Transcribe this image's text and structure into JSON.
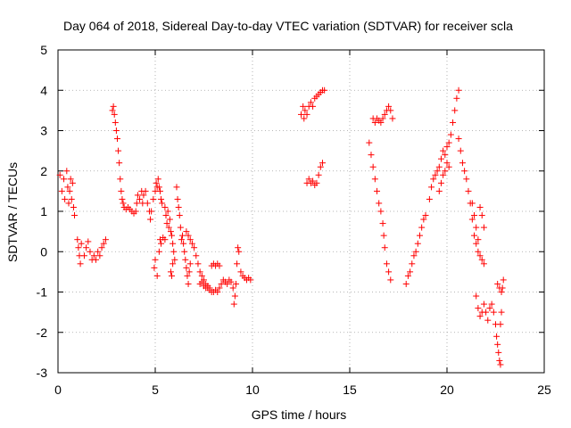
{
  "chart_data": {
    "type": "scatter",
    "title": "Day 064 of 2018, Sidereal Day-to-day VTEC variation (SDTVAR) for receiver scla",
    "xlabel": "GPS time / hours",
    "ylabel": "SDTVAR / TECUs",
    "xlim": [
      0,
      25
    ],
    "ylim": [
      -3,
      5
    ],
    "xticks": [
      0,
      5,
      10,
      15,
      20,
      25
    ],
    "yticks": [
      -3,
      -2,
      -1,
      0,
      1,
      2,
      3,
      4,
      5
    ],
    "grid": true,
    "marker": "+",
    "color": "#ff0000",
    "series": [
      {
        "name": "SDTVAR",
        "points": [
          [
            0.1,
            1.9
          ],
          [
            0.2,
            1.5
          ],
          [
            0.3,
            1.8
          ],
          [
            0.35,
            1.3
          ],
          [
            0.45,
            2.0
          ],
          [
            0.5,
            1.6
          ],
          [
            0.55,
            1.2
          ],
          [
            0.6,
            1.5
          ],
          [
            0.65,
            1.8
          ],
          [
            0.7,
            1.3
          ],
          [
            0.75,
            1.7
          ],
          [
            0.8,
            1.1
          ],
          [
            0.85,
            0.9
          ],
          [
            1.0,
            0.3
          ],
          [
            1.05,
            0.1
          ],
          [
            1.1,
            -0.1
          ],
          [
            1.15,
            -0.3
          ],
          [
            1.2,
            0.2
          ],
          [
            1.35,
            -0.1
          ],
          [
            1.45,
            0.1
          ],
          [
            1.55,
            0.25
          ],
          [
            1.65,
            0.0
          ],
          [
            1.75,
            -0.2
          ],
          [
            1.85,
            -0.1
          ],
          [
            1.95,
            -0.2
          ],
          [
            2.05,
            0.0
          ],
          [
            2.15,
            -0.1
          ],
          [
            2.25,
            0.1
          ],
          [
            2.35,
            0.2
          ],
          [
            2.45,
            0.3
          ],
          [
            2.8,
            3.5
          ],
          [
            2.85,
            3.6
          ],
          [
            2.9,
            3.4
          ],
          [
            2.95,
            3.2
          ],
          [
            3.0,
            3.0
          ],
          [
            3.05,
            2.8
          ],
          [
            3.1,
            2.5
          ],
          [
            3.15,
            2.2
          ],
          [
            3.2,
            1.8
          ],
          [
            3.25,
            1.5
          ],
          [
            3.3,
            1.3
          ],
          [
            3.35,
            1.2
          ],
          [
            3.4,
            1.1
          ],
          [
            3.5,
            1.05
          ],
          [
            3.6,
            1.1
          ],
          [
            3.7,
            1.05
          ],
          [
            3.8,
            1.0
          ],
          [
            3.9,
            0.95
          ],
          [
            4.0,
            1.0
          ],
          [
            4.05,
            1.2
          ],
          [
            4.1,
            1.4
          ],
          [
            4.2,
            1.3
          ],
          [
            4.3,
            1.5
          ],
          [
            4.35,
            1.2
          ],
          [
            4.4,
            1.4
          ],
          [
            4.5,
            1.5
          ],
          [
            4.6,
            1.2
          ],
          [
            4.7,
            1.0
          ],
          [
            4.75,
            0.8
          ],
          [
            4.8,
            1.0
          ],
          [
            4.9,
            1.3
          ],
          [
            5.0,
            1.5
          ],
          [
            5.05,
            1.7
          ],
          [
            5.1,
            1.6
          ],
          [
            5.15,
            1.8
          ],
          [
            5.2,
            1.6
          ],
          [
            5.25,
            1.5
          ],
          [
            5.3,
            1.3
          ],
          [
            5.35,
            1.2
          ],
          [
            4.95,
            -0.4
          ],
          [
            5.0,
            -0.2
          ],
          [
            5.1,
            -0.6
          ],
          [
            5.2,
            0.0
          ],
          [
            5.25,
            0.3
          ],
          [
            5.3,
            0.2
          ],
          [
            5.4,
            0.35
          ],
          [
            5.5,
            0.3
          ],
          [
            5.5,
            1.1
          ],
          [
            5.55,
            0.9
          ],
          [
            5.6,
            0.7
          ],
          [
            5.65,
            1.0
          ],
          [
            5.7,
            0.6
          ],
          [
            5.75,
            0.8
          ],
          [
            5.8,
            0.5
          ],
          [
            5.85,
            0.4
          ],
          [
            5.9,
            0.2
          ],
          [
            5.95,
            0.0
          ],
          [
            6.0,
            -0.2
          ],
          [
            5.8,
            -0.5
          ],
          [
            5.85,
            -0.6
          ],
          [
            5.9,
            -0.3
          ],
          [
            6.1,
            1.6
          ],
          [
            6.15,
            1.3
          ],
          [
            6.2,
            1.1
          ],
          [
            6.25,
            0.9
          ],
          [
            6.3,
            0.6
          ],
          [
            6.35,
            0.3
          ],
          [
            6.4,
            0.4
          ],
          [
            6.45,
            0.2
          ],
          [
            6.5,
            0.0
          ],
          [
            6.55,
            -0.2
          ],
          [
            6.6,
            -0.4
          ],
          [
            6.65,
            -0.6
          ],
          [
            6.7,
            -0.8
          ],
          [
            6.75,
            -0.5
          ],
          [
            6.8,
            -0.3
          ],
          [
            6.6,
            0.5
          ],
          [
            6.7,
            0.4
          ],
          [
            6.8,
            0.3
          ],
          [
            6.9,
            0.2
          ],
          [
            7.0,
            0.1
          ],
          [
            7.1,
            -0.1
          ],
          [
            7.2,
            -0.3
          ],
          [
            7.3,
            -0.5
          ],
          [
            7.4,
            -0.6
          ],
          [
            7.5,
            -0.7
          ],
          [
            7.6,
            -0.8
          ],
          [
            7.7,
            -0.9
          ],
          [
            7.8,
            -0.95
          ],
          [
            7.9,
            -1.0
          ],
          [
            8.0,
            -1.0
          ],
          [
            8.1,
            -0.95
          ],
          [
            8.2,
            -1.0
          ],
          [
            8.3,
            -0.9
          ],
          [
            7.3,
            -0.8
          ],
          [
            7.4,
            -0.75
          ],
          [
            7.5,
            -0.85
          ],
          [
            7.6,
            -0.9
          ],
          [
            7.7,
            -0.85
          ],
          [
            7.8,
            -0.9
          ],
          [
            7.9,
            -0.35
          ],
          [
            8.0,
            -0.3
          ],
          [
            8.1,
            -0.35
          ],
          [
            8.2,
            -0.3
          ],
          [
            8.3,
            -0.35
          ],
          [
            8.4,
            -0.8
          ],
          [
            8.5,
            -0.7
          ],
          [
            8.6,
            -0.75
          ],
          [
            8.7,
            -0.8
          ],
          [
            8.8,
            -0.7
          ],
          [
            8.9,
            -0.75
          ],
          [
            9.0,
            -0.9
          ],
          [
            9.05,
            -1.3
          ],
          [
            9.1,
            -1.1
          ],
          [
            9.15,
            -0.8
          ],
          [
            9.2,
            -0.3
          ],
          [
            9.25,
            0.1
          ],
          [
            9.3,
            0.0
          ],
          [
            9.4,
            -0.5
          ],
          [
            9.5,
            -0.6
          ],
          [
            9.6,
            -0.65
          ],
          [
            9.7,
            -0.7
          ],
          [
            9.8,
            -0.65
          ],
          [
            9.9,
            -0.7
          ],
          [
            12.5,
            3.4
          ],
          [
            12.6,
            3.6
          ],
          [
            12.65,
            3.3
          ],
          [
            12.7,
            3.5
          ],
          [
            12.8,
            3.4
          ],
          [
            12.9,
            3.6
          ],
          [
            13.0,
            3.7
          ],
          [
            13.1,
            3.6
          ],
          [
            13.2,
            3.8
          ],
          [
            13.3,
            3.85
          ],
          [
            13.4,
            3.9
          ],
          [
            13.5,
            3.95
          ],
          [
            13.6,
            4.0
          ],
          [
            13.7,
            4.0
          ],
          [
            12.8,
            1.7
          ],
          [
            12.9,
            1.8
          ],
          [
            13.0,
            1.7
          ],
          [
            13.1,
            1.75
          ],
          [
            13.2,
            1.65
          ],
          [
            13.3,
            1.7
          ],
          [
            13.4,
            1.9
          ],
          [
            13.5,
            2.1
          ],
          [
            13.6,
            2.2
          ],
          [
            16.0,
            2.7
          ],
          [
            16.1,
            2.4
          ],
          [
            16.2,
            2.1
          ],
          [
            16.3,
            1.8
          ],
          [
            16.4,
            1.5
          ],
          [
            16.5,
            1.2
          ],
          [
            16.6,
            1.0
          ],
          [
            16.7,
            0.7
          ],
          [
            16.75,
            0.4
          ],
          [
            16.8,
            0.1
          ],
          [
            16.9,
            -0.3
          ],
          [
            17.0,
            -0.5
          ],
          [
            17.1,
            -0.7
          ],
          [
            16.2,
            3.3
          ],
          [
            16.3,
            3.2
          ],
          [
            16.4,
            3.3
          ],
          [
            16.5,
            3.25
          ],
          [
            16.6,
            3.2
          ],
          [
            16.7,
            3.3
          ],
          [
            16.8,
            3.4
          ],
          [
            16.9,
            3.5
          ],
          [
            17.0,
            3.6
          ],
          [
            17.1,
            3.5
          ],
          [
            17.2,
            3.3
          ],
          [
            17.9,
            -0.8
          ],
          [
            18.0,
            -0.6
          ],
          [
            18.1,
            -0.5
          ],
          [
            18.2,
            -0.3
          ],
          [
            18.3,
            -0.1
          ],
          [
            18.4,
            0.0
          ],
          [
            18.5,
            0.2
          ],
          [
            18.6,
            0.4
          ],
          [
            18.7,
            0.6
          ],
          [
            18.8,
            0.8
          ],
          [
            18.9,
            0.9
          ],
          [
            19.1,
            1.3
          ],
          [
            19.2,
            1.6
          ],
          [
            19.3,
            1.8
          ],
          [
            19.4,
            1.9
          ],
          [
            19.5,
            2.0
          ],
          [
            19.6,
            2.1
          ],
          [
            19.7,
            2.3
          ],
          [
            19.8,
            2.5
          ],
          [
            19.9,
            2.4
          ],
          [
            20.0,
            2.6
          ],
          [
            20.1,
            2.7
          ],
          [
            20.2,
            2.9
          ],
          [
            20.3,
            3.2
          ],
          [
            20.4,
            3.5
          ],
          [
            20.5,
            3.8
          ],
          [
            20.6,
            4.0
          ],
          [
            19.6,
            1.5
          ],
          [
            19.7,
            1.7
          ],
          [
            19.8,
            1.9
          ],
          [
            19.9,
            2.0
          ],
          [
            20.0,
            2.2
          ],
          [
            20.1,
            2.1
          ],
          [
            20.6,
            2.8
          ],
          [
            20.7,
            2.5
          ],
          [
            20.8,
            2.2
          ],
          [
            20.9,
            2.0
          ],
          [
            21.0,
            1.8
          ],
          [
            21.1,
            1.5
          ],
          [
            21.2,
            1.2
          ],
          [
            21.3,
            0.8
          ],
          [
            21.4,
            0.4
          ],
          [
            21.5,
            0.2
          ],
          [
            21.6,
            0.0
          ],
          [
            21.7,
            -0.1
          ],
          [
            21.8,
            -0.2
          ],
          [
            21.9,
            -0.3
          ],
          [
            21.3,
            1.2
          ],
          [
            21.4,
            0.9
          ],
          [
            21.5,
            0.6
          ],
          [
            21.6,
            0.3
          ],
          [
            21.7,
            1.1
          ],
          [
            21.8,
            0.9
          ],
          [
            21.9,
            0.6
          ],
          [
            21.5,
            -1.1
          ],
          [
            21.6,
            -1.4
          ],
          [
            21.7,
            -1.6
          ],
          [
            21.8,
            -1.5
          ],
          [
            21.9,
            -1.3
          ],
          [
            22.0,
            -1.5
          ],
          [
            22.1,
            -1.7
          ],
          [
            22.2,
            -1.4
          ],
          [
            22.3,
            -1.3
          ],
          [
            22.4,
            -1.5
          ],
          [
            22.5,
            -1.8
          ],
          [
            22.55,
            -2.1
          ],
          [
            22.6,
            -2.3
          ],
          [
            22.65,
            -2.5
          ],
          [
            22.7,
            -2.7
          ],
          [
            22.75,
            -2.8
          ],
          [
            22.6,
            -0.8
          ],
          [
            22.7,
            -0.9
          ],
          [
            22.8,
            -1.0
          ],
          [
            22.85,
            -0.9
          ],
          [
            22.9,
            -0.7
          ],
          [
            22.8,
            -1.5
          ],
          [
            22.75,
            -1.8
          ]
        ]
      }
    ]
  }
}
